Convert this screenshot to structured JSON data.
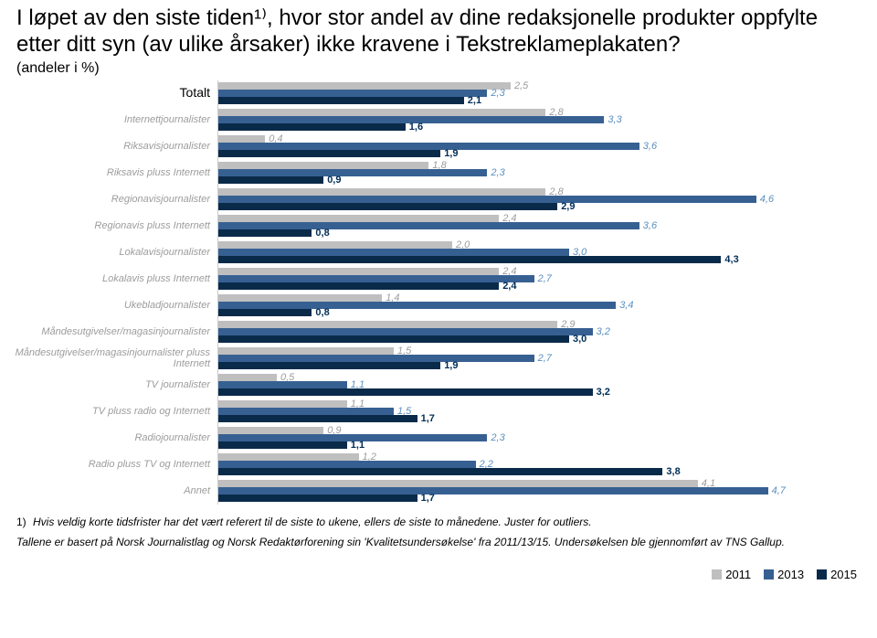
{
  "title": "I løpet av den siste tiden¹⁾, hvor stor andel av dine redaksjonelle produkter oppfylte etter ditt syn (av ulike årsaker) ikke kravene i Tekstreklameplakaten?",
  "subtitle": "(andeler i %)",
  "xmax": 5.0,
  "colors": {
    "y2011": "#bfbfbf",
    "y2013": "#376092",
    "y2015": "#0a2a4a",
    "text": "#000000",
    "sub_text": "#9c9c9c",
    "grid": "#e6e6e6"
  },
  "legend": [
    {
      "label": "2011",
      "color": "#bfbfbf"
    },
    {
      "label": "2013",
      "color": "#376092"
    },
    {
      "label": "2015",
      "color": "#0a2a4a"
    }
  ],
  "series_keys": [
    "y2011",
    "y2013",
    "y2015"
  ],
  "categories": [
    {
      "label": "Totalt",
      "is_sub": false,
      "y2011": 2.5,
      "y2013": 2.3,
      "y2015": 2.1
    },
    {
      "label": "Internettjournalister",
      "is_sub": true,
      "y2011": 2.8,
      "y2013": 3.3,
      "y2015": 1.6
    },
    {
      "label": "Riksavisjournalister",
      "is_sub": true,
      "y2011": 0.4,
      "y2013": 3.6,
      "y2015": 1.9
    },
    {
      "label": "Riksavis pluss Internett",
      "is_sub": true,
      "y2011": 1.8,
      "y2013": 2.3,
      "y2015": 0.9
    },
    {
      "label": "Regionavisjournalister",
      "is_sub": true,
      "y2011": 2.8,
      "y2013": 4.6,
      "y2015": 2.9
    },
    {
      "label": "Regionavis pluss Internett",
      "is_sub": true,
      "y2011": 2.4,
      "y2013": 3.6,
      "y2015": 0.8
    },
    {
      "label": "Lokalavisjournalister",
      "is_sub": true,
      "y2011": 2.0,
      "y2013": 3.0,
      "y2015": 4.3
    },
    {
      "label": "Lokalavis pluss Internett",
      "is_sub": true,
      "y2011": 2.4,
      "y2013": 2.7,
      "y2015": 2.4
    },
    {
      "label": "Ukebladjournalister",
      "is_sub": true,
      "y2011": 1.4,
      "y2013": 3.4,
      "y2015": 0.8
    },
    {
      "label": "Måndesutgivelser/magasinjournalister",
      "is_sub": true,
      "y2011": 2.9,
      "y2013": 3.2,
      "y2015": 3.0
    },
    {
      "label": "Måndesutgivelser/magasinjournalister pluss Internett",
      "is_sub": true,
      "y2011": 1.5,
      "y2013": 2.7,
      "y2015": 1.9
    },
    {
      "label": "TV journalister",
      "is_sub": true,
      "y2011": 0.5,
      "y2013": 1.1,
      "y2015": 3.2
    },
    {
      "label": "TV pluss radio og Internett",
      "is_sub": true,
      "y2011": 1.1,
      "y2013": 1.5,
      "y2015": 1.7
    },
    {
      "label": "Radiojournalister",
      "is_sub": true,
      "y2011": 0.9,
      "y2013": 2.3,
      "y2015": 1.1
    },
    {
      "label": "Radio pluss TV og Internett",
      "is_sub": true,
      "y2011": 1.2,
      "y2013": 2.2,
      "y2015": 3.8
    },
    {
      "label": "Annet",
      "is_sub": true,
      "y2011": 4.1,
      "y2013": 4.7,
      "y2015": 1.7
    }
  ],
  "labels": {
    "y2011": [
      "2,5",
      "2,8",
      "0,4",
      "1,8",
      "2,8",
      "2,4",
      "2,0",
      "2,4",
      "1,4",
      "2,9",
      "1,5",
      "0,5",
      "1,1",
      "0,9",
      "1,2",
      "4,1"
    ],
    "y2013": [
      "2,3",
      "3,3",
      "3,6",
      "2,3",
      "4,6",
      "3,6",
      "3,0",
      "2,7",
      "3,4",
      "3,2",
      "2,7",
      "1,1",
      "1,5",
      "2,3",
      "2,2",
      "4,7"
    ],
    "y2015": [
      "2,1",
      "1,6",
      "1,9",
      "0,9",
      "2,9",
      "0,8",
      "4,3",
      "2,4",
      "0,8",
      "3,0",
      "1,9",
      "3,2",
      "1,7",
      "1,1",
      "3,8",
      "1,7"
    ]
  },
  "footnote_num": "1)",
  "footnote_text": "Hvis veldig korte tidsfrister  har det vært referert til de siste to ukene, ellers  de siste to månedene. Juster for outliers.",
  "source_text": "Tallene er  basert på Norsk Journalistlag og Norsk Redaktørforening sin 'Kvalitetsundersøkelse' fra 2011/13/15. Undersøkelsen ble gjennomført av TNS Gallup."
}
